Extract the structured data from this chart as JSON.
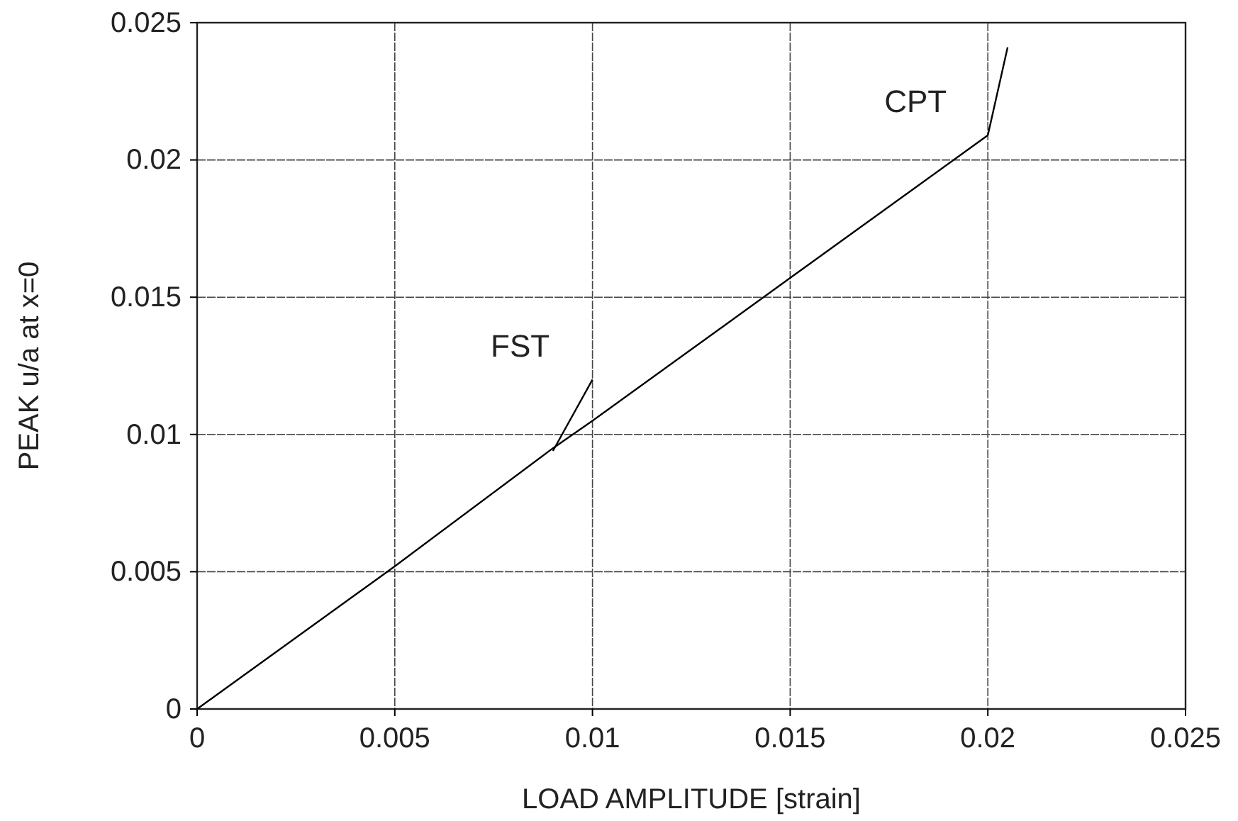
{
  "chart_data": {
    "type": "line",
    "xlabel": "LOAD AMPLITUDE [strain]",
    "ylabel": "PEAK u/a at x=0",
    "xlim": [
      0,
      0.025
    ],
    "xticks": [
      0,
      0.005,
      0.01,
      0.015,
      0.02,
      0.025
    ],
    "ylim": [
      0,
      0.025
    ],
    "yticks": [
      0,
      0.005,
      0.01,
      0.015,
      0.02,
      0.025
    ],
    "grid": true,
    "marker": "none",
    "line_style": "solid",
    "series": [
      {
        "color": "#000000",
        "x": [
          0,
          0.005,
          0.009,
          0.01,
          0.015,
          0.02
        ],
        "values": [
          0,
          0.0052,
          0.0095,
          0.0105,
          0.0157,
          0.0209
        ]
      },
      {
        "color": "#000000",
        "x": [
          0.009,
          0.01
        ],
        "values": [
          0.0094,
          0.012
        ]
      },
      {
        "color": "#000000",
        "x": [
          0.02,
          0.0205
        ],
        "values": [
          0.0209,
          0.0241
        ]
      }
    ],
    "annotations": [
      {
        "text": "FST",
        "x": 0.01,
        "y": 0.012
      },
      {
        "text": "CPT",
        "x": 0.02,
        "y": 0.0209
      }
    ]
  }
}
